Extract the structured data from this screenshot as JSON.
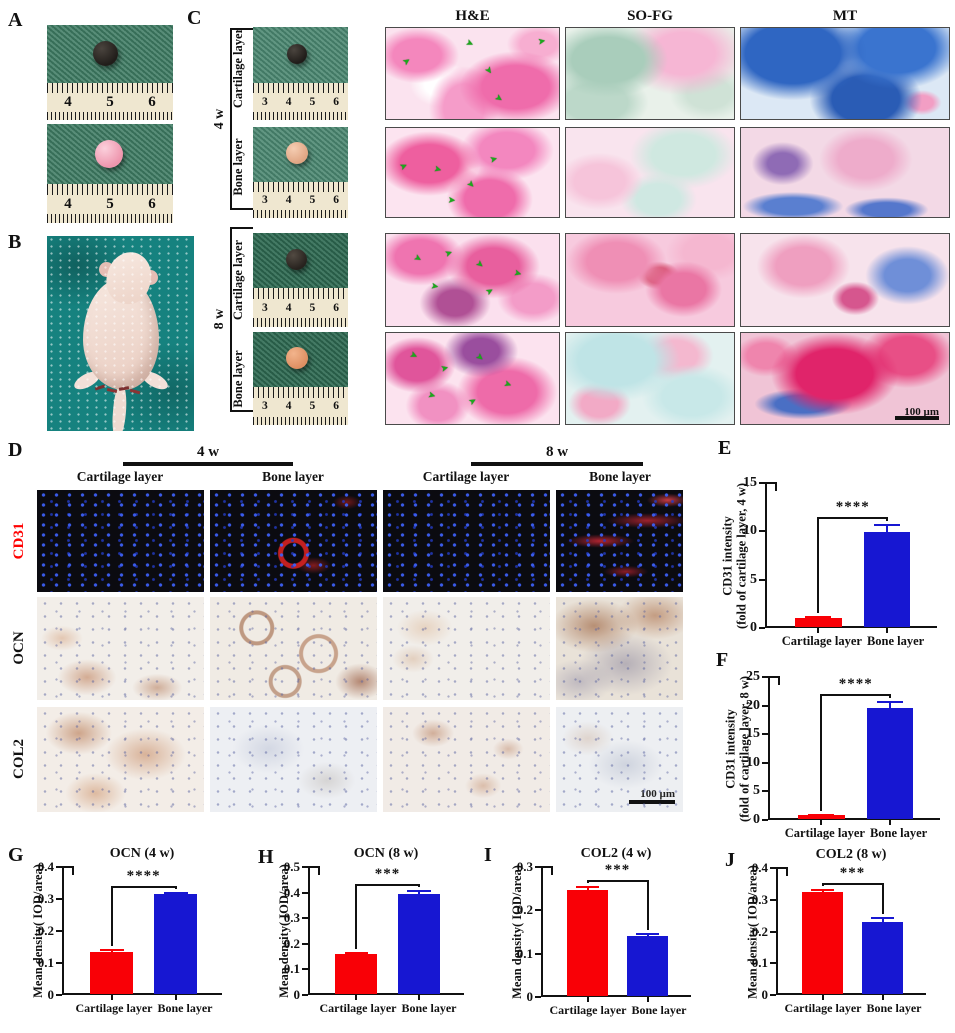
{
  "panels": {
    "a": "A",
    "b": "B",
    "c": "C",
    "d": "D",
    "e": "E",
    "f": "F",
    "g": "G",
    "h": "H",
    "i": "I",
    "j": "J"
  },
  "panel_a": {
    "ruler_numbers": [
      "4",
      "5",
      "6"
    ]
  },
  "panel_c": {
    "column_headers": [
      "H&E",
      "SO-FG",
      "MT"
    ],
    "group_labels": [
      "4 w",
      "8 w"
    ],
    "row_labels": [
      "Cartilage layer",
      "Bone layer",
      "Cartilage layer",
      "Bone layer"
    ],
    "ruler_numbers": [
      "3",
      "4",
      "5",
      "6"
    ],
    "scale_bar": "100 µm",
    "arrow_glyph": "➤",
    "arrow_positions": [
      [
        [
          10,
          32,
          -35
        ],
        [
          46,
          12,
          25
        ],
        [
          88,
          10,
          -10
        ],
        [
          57,
          42,
          55
        ],
        [
          63,
          72,
          35
        ]
      ],
      [
        [
          8,
          38,
          -25
        ],
        [
          28,
          42,
          15
        ],
        [
          47,
          58,
          45
        ],
        [
          60,
          30,
          -15
        ],
        [
          36,
          76,
          5
        ]
      ],
      [
        [
          16,
          22,
          30
        ],
        [
          34,
          16,
          -20
        ],
        [
          52,
          28,
          40
        ],
        [
          26,
          52,
          10
        ],
        [
          58,
          58,
          -30
        ],
        [
          74,
          38,
          15
        ]
      ],
      [
        [
          14,
          20,
          25
        ],
        [
          32,
          34,
          -15
        ],
        [
          52,
          22,
          40
        ],
        [
          24,
          64,
          15
        ],
        [
          48,
          70,
          -30
        ],
        [
          68,
          52,
          20
        ]
      ]
    ]
  },
  "panel_d": {
    "time_headers": [
      "4 w",
      "8 w"
    ],
    "column_labels": [
      "Cartilage layer",
      "Bone layer",
      "Cartilage layer",
      "Bone layer"
    ],
    "row_labels": [
      "CD31",
      "OCN",
      "COL2"
    ],
    "scale_bar": "100 µm"
  },
  "colors": {
    "cartilage_bar": "#F90006",
    "bone_bar": "#1717D2",
    "cd31_label": "#FF0000",
    "arrow_green": "#1CA81C"
  },
  "chart_data": [
    {
      "panel": "E",
      "type": "bar",
      "title": "",
      "ylabel_lines": [
        "CD31 intensity",
        "(fold of cartilage layer, 4 w)"
      ],
      "categories": [
        "Cartilage layer",
        "Bone layer"
      ],
      "values": [
        1.0,
        9.9
      ],
      "errors": [
        0.1,
        0.75
      ],
      "ylim": [
        0,
        15
      ],
      "yticks": [
        "0",
        "5",
        "10",
        "15"
      ],
      "significance": "****"
    },
    {
      "panel": "F",
      "type": "bar",
      "title": "",
      "ylabel_lines": [
        "CD31 intensity",
        "(fold of cartilage layer, 8 w)"
      ],
      "categories": [
        "Cartilage layer",
        "Bone layer"
      ],
      "values": [
        0.85,
        19.5
      ],
      "errors": [
        0.1,
        1.1
      ],
      "ylim": [
        0,
        25
      ],
      "yticks": [
        "0",
        "5",
        "10",
        "15",
        "20",
        "25"
      ],
      "significance": "****"
    },
    {
      "panel": "G",
      "type": "bar",
      "title": "OCN (4 w)",
      "ylabel_lines": [
        "Mean density( IOD/area)"
      ],
      "categories": [
        "Cartilage layer",
        "Bone layer"
      ],
      "values": [
        0.135,
        0.315
      ],
      "errors": [
        0.007,
        0.004
      ],
      "ylim": [
        0,
        0.4
      ],
      "yticks": [
        "0",
        "0.1",
        "0.2",
        "0.3",
        "0.4"
      ],
      "significance": "****"
    },
    {
      "panel": "H",
      "type": "bar",
      "title": "OCN (8 w)",
      "ylabel_lines": [
        "Mean density( IOD/area)"
      ],
      "categories": [
        "Cartilage layer",
        "Bone layer"
      ],
      "values": [
        0.16,
        0.395
      ],
      "errors": [
        0.005,
        0.012
      ],
      "ylim": [
        0,
        0.5
      ],
      "yticks": [
        "0",
        "0.1",
        "0.2",
        "0.3",
        "0.4",
        "0.5"
      ],
      "significance": "***"
    },
    {
      "panel": "I",
      "type": "bar",
      "title": "COL2 (4 w)",
      "ylabel_lines": [
        "Mean density( IOD/area)"
      ],
      "categories": [
        "Cartilage layer",
        "Bone layer"
      ],
      "values": [
        0.248,
        0.141
      ],
      "errors": [
        0.005,
        0.004
      ],
      "ylim": [
        0,
        0.3
      ],
      "yticks": [
        "0",
        "0.1",
        "0.2",
        "0.3"
      ],
      "significance": "***"
    },
    {
      "panel": "J",
      "type": "bar",
      "title": "COL2 (8 w)",
      "ylabel_lines": [
        "Mean density( IOD/area)"
      ],
      "categories": [
        "Cartilage layer",
        "Bone layer"
      ],
      "values": [
        0.325,
        0.23
      ],
      "errors": [
        0.007,
        0.014
      ],
      "ylim": [
        0,
        0.4
      ],
      "yticks": [
        "0",
        "0.1",
        "0.2",
        "0.3",
        "0.4"
      ],
      "significance": "***"
    }
  ]
}
